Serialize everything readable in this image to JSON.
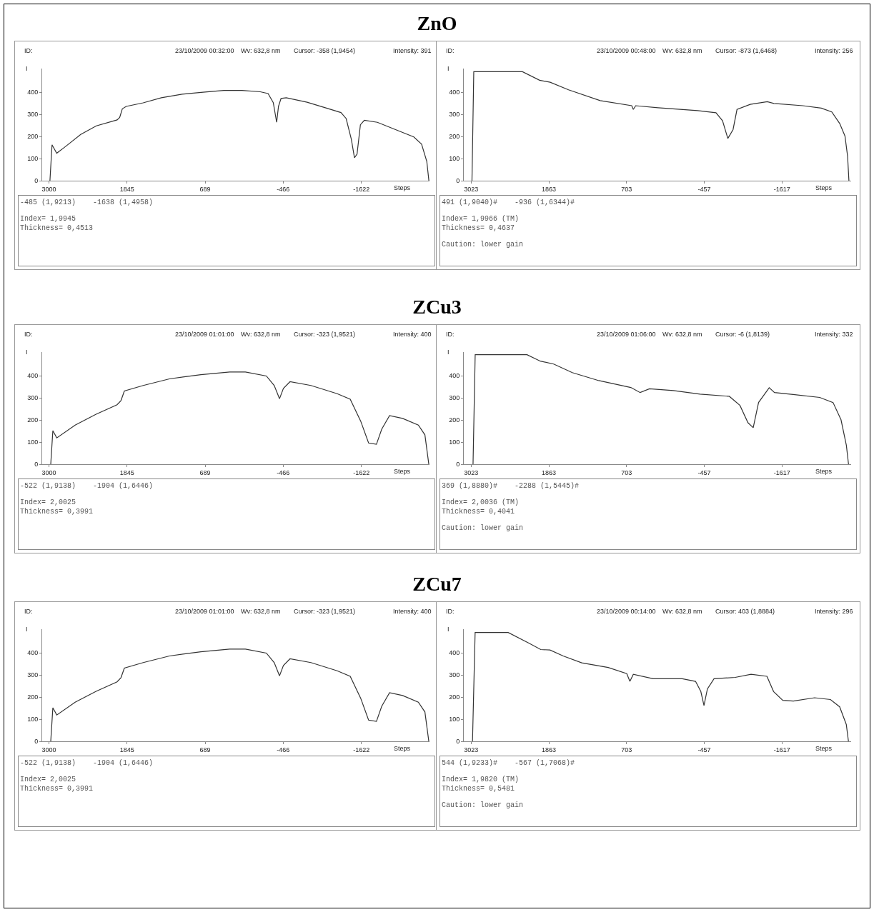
{
  "chart_data": [
    {
      "type": "line",
      "title": "ZnO",
      "xlabel": "Steps",
      "ylabel": "I",
      "color": "#333333",
      "xlim": [
        3100,
        -2630
      ],
      "ylim": [
        0,
        507
      ],
      "xticks": [
        3000,
        1845,
        689,
        -466,
        -1622
      ],
      "yticks": [
        0,
        100,
        200,
        300,
        400
      ],
      "grid": false,
      "legend": false,
      "marker": "none",
      "line_style": "solid",
      "x": [
        2985,
        2954,
        2885,
        2761,
        2530,
        2299,
        1991,
        1953,
        1914,
        1857,
        1606,
        1337,
        1029,
        721,
        413,
        143,
        -126,
        -242,
        -319,
        -369,
        -396,
        -434,
        -511,
        -819,
        -1089,
        -1320,
        -1397,
        -1474,
        -1520,
        -1558,
        -1608,
        -1666,
        -1859,
        -2128,
        -2398,
        -2513,
        -2590,
        -2621
      ],
      "values": [
        0,
        162,
        124,
        153,
        209,
        248,
        275,
        286,
        325,
        336,
        352,
        375,
        391,
        400,
        408,
        408,
        402,
        394,
        353,
        264,
        336,
        372,
        375,
        355,
        330,
        308,
        281,
        187,
        104,
        120,
        253,
        273,
        264,
        231,
        198,
        165,
        87,
        0
      ],
      "annotations": [
        "ID:",
        "23/10/2009 00:32:00",
        "Wv: 632,8 nm",
        "Cursor: -358 (1,9454)",
        "Intensity: 391",
        "-485 (1,9213)    -1638 (1,4958)",
        "Index= 1,9945",
        "Thickness= 0,4513"
      ]
    },
    {
      "type": "line",
      "xlabel": "Steps",
      "ylabel": "I",
      "color": "#333333",
      "xlim": [
        3133,
        -2650
      ],
      "ylim": [
        0,
        507
      ],
      "xticks": [
        3023,
        1863,
        703,
        -457,
        -1617
      ],
      "yticks": [
        0,
        100,
        200,
        300,
        400
      ],
      "grid": false,
      "legend": false,
      "marker": "none",
      "line_style": "solid",
      "x": [
        3011,
        2984,
        2257,
        2001,
        1844,
        1569,
        1097,
        626,
        602,
        567,
        233,
        -357,
        -632,
        -730,
        -809,
        -887,
        -946,
        -1143,
        -1398,
        -1497,
        -1929,
        -2204,
        -2361,
        -2479,
        -2558,
        -2597,
        -2617
      ],
      "values": [
        0,
        493,
        493,
        454,
        445,
        411,
        362,
        339,
        322,
        339,
        330,
        317,
        307,
        271,
        191,
        231,
        322,
        345,
        357,
        349,
        339,
        328,
        311,
        259,
        202,
        111,
        0
      ],
      "annotations": [
        "ID:",
        "23/10/2009 00:48:00",
        "Wv: 632,8 nm",
        "Cursor: -873 (1,6468)",
        "Intensity: 256",
        "491 (1,9040)#    -936 (1,6344)#",
        "Index= 1,9966 (TM)",
        "Thickness= 0,4637",
        "Caution: lower gain"
      ]
    },
    {
      "type": "line",
      "title": "ZCu3",
      "xlabel": "Steps",
      "ylabel": "I",
      "color": "#333333",
      "xlim": [
        3100,
        -2630
      ],
      "ylim": [
        0,
        507
      ],
      "xticks": [
        3000,
        1845,
        689,
        -466,
        -1622
      ],
      "yticks": [
        0,
        100,
        200,
        300,
        400
      ],
      "grid": false,
      "legend": false,
      "marker": "none",
      "line_style": "solid",
      "x": [
        2973,
        2942,
        2884,
        2612,
        2302,
        1992,
        1934,
        1884,
        1605,
        1217,
        752,
        326,
        93,
        -217,
        -333,
        -411,
        -469,
        -566,
        -876,
        -1264,
        -1457,
        -1612,
        -1729,
        -1845,
        -1923,
        -2039,
        -2233,
        -2465,
        -2562,
        -2620
      ],
      "values": [
        0,
        152,
        119,
        177,
        226,
        269,
        288,
        331,
        356,
        386,
        405,
        417,
        417,
        399,
        356,
        296,
        343,
        373,
        356,
        319,
        294,
        195,
        96,
        90,
        158,
        220,
        207,
        177,
        133,
        0
      ],
      "annotations": [
        "ID:",
        "23/10/2009 01:01:00",
        "Wv: 632,8 nm",
        "Cursor: -323 (1,9521)",
        "Intensity: 400",
        "-522 (1,9138)    -1904 (1,6446)",
        "Index= 2,0025",
        "Thickness= 0,3991"
      ]
    },
    {
      "type": "line",
      "xlabel": "Steps",
      "ylabel": "I",
      "color": "#333333",
      "xlim": [
        3133,
        -2650
      ],
      "ylim": [
        0,
        507
      ],
      "xticks": [
        3023,
        1863,
        703,
        -457,
        -1617
      ],
      "yticks": [
        0,
        100,
        200,
        300,
        400
      ],
      "grid": false,
      "legend": false,
      "marker": "none",
      "line_style": "solid",
      "x": [
        2995,
        2963,
        2189,
        1990,
        1791,
        1513,
        1116,
        639,
        500,
        361,
        3,
        -394,
        -831,
        -990,
        -1109,
        -1188,
        -1268,
        -1427,
        -1506,
        -1784,
        -2181,
        -2380,
        -2499,
        -2579,
        -2611
      ],
      "values": [
        0,
        495,
        495,
        466,
        453,
        414,
        378,
        347,
        324,
        341,
        333,
        317,
        307,
        266,
        188,
        165,
        279,
        346,
        324,
        315,
        302,
        279,
        201,
        85,
        0
      ],
      "annotations": [
        "ID:",
        "23/10/2009 01:06:00",
        "Wv: 632,8 nm",
        "Cursor: -6 (1,8139)",
        "Intensity: 332",
        "369 (1,8880)#    -2288 (1,5445)#",
        "Index= 2,0036 (TM)",
        "Thickness= 0,4041",
        "Caution: lower gain"
      ]
    },
    {
      "type": "line",
      "title": "ZCu7",
      "xlabel": "Steps",
      "ylabel": "I",
      "color": "#333333",
      "xlim": [
        3100,
        -2630
      ],
      "ylim": [
        0,
        507
      ],
      "xticks": [
        3000,
        1845,
        689,
        -466,
        -1622
      ],
      "yticks": [
        0,
        100,
        200,
        300,
        400
      ],
      "grid": false,
      "legend": false,
      "marker": "none",
      "line_style": "solid",
      "x": [
        2973,
        2942,
        2884,
        2612,
        2302,
        1992,
        1934,
        1884,
        1605,
        1217,
        752,
        326,
        93,
        -217,
        -333,
        -411,
        -469,
        -566,
        -876,
        -1264,
        -1457,
        -1612,
        -1729,
        -1845,
        -1923,
        -2039,
        -2233,
        -2465,
        -2562,
        -2620
      ],
      "values": [
        0,
        152,
        119,
        177,
        226,
        269,
        288,
        331,
        356,
        386,
        405,
        417,
        417,
        399,
        356,
        296,
        343,
        373,
        356,
        319,
        294,
        195,
        96,
        90,
        158,
        220,
        207,
        177,
        133,
        0
      ],
      "annotations": [
        "ID:",
        "23/10/2009 01:01:00",
        "Wv: 632,8 nm",
        "Cursor: -323 (1,9521)",
        "Intensity: 400",
        "-522 (1,9138)    -1904 (1,6446)",
        "Index= 2,0025",
        "Thickness= 0,3991"
      ]
    },
    {
      "type": "line",
      "xlabel": "Steps",
      "ylabel": "I",
      "color": "#333333",
      "xlim": [
        3133,
        -2650
      ],
      "ylim": [
        0,
        507
      ],
      "xticks": [
        3023,
        1863,
        703,
        -457,
        -1617
      ],
      "yticks": [
        0,
        100,
        200,
        300,
        400
      ],
      "grid": false,
      "legend": false,
      "marker": "none",
      "line_style": "solid",
      "x": [
        3003,
        2964,
        2470,
        2162,
        1984,
        1846,
        1649,
        1372,
        977,
        700,
        653,
        602,
        305,
        -129,
        -327,
        -406,
        -453,
        -504,
        -603,
        -919,
        -1156,
        -1393,
        -1492,
        -1630,
        -1788,
        -2104,
        -2341,
        -2479,
        -2578,
        -2610
      ],
      "values": [
        0,
        492,
        492,
        444,
        415,
        413,
        386,
        355,
        334,
        306,
        271,
        303,
        283,
        283,
        271,
        225,
        162,
        237,
        283,
        289,
        303,
        294,
        225,
        185,
        182,
        197,
        189,
        156,
        76,
        0
      ],
      "annotations": [
        "ID:",
        "23/10/2009 00:14:00",
        "Wv: 632,8 nm",
        "Cursor: 403 (1,8884)",
        "Intensity: 296",
        "544 (1,9233)#    -567 (1,7068)#",
        "Index= 1,9820 (TM)",
        "Thickness= 0,5481",
        "Caution: lower gain"
      ]
    }
  ]
}
